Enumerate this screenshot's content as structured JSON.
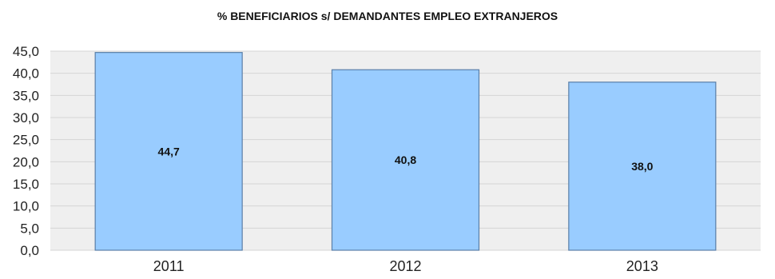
{
  "chart_data": {
    "type": "bar",
    "title": "% BENEFICIARIOS s/ DEMANDANTES EMPLEO EXTRANJEROS",
    "categories": [
      "2011",
      "2012",
      "2013"
    ],
    "values": [
      44.7,
      40.8,
      38.0
    ],
    "data_labels": [
      "44,7",
      "40,8",
      "38,0"
    ],
    "y_ticks": [
      0,
      5,
      10,
      15,
      20,
      25,
      30,
      35,
      40,
      45
    ],
    "y_tick_labels": [
      "0,0",
      "5,0",
      "10,0",
      "15,0",
      "20,0",
      "25,0",
      "30,0",
      "35,0",
      "40,0",
      "45,0"
    ],
    "ylim": [
      0,
      45
    ],
    "xlabel": "",
    "ylabel": "",
    "grid": true,
    "colors": {
      "bar_fill": "#99ccff",
      "bar_stroke": "#5a7fa8",
      "plot_background": "#efefef",
      "grid": "#d4d4d4"
    }
  }
}
